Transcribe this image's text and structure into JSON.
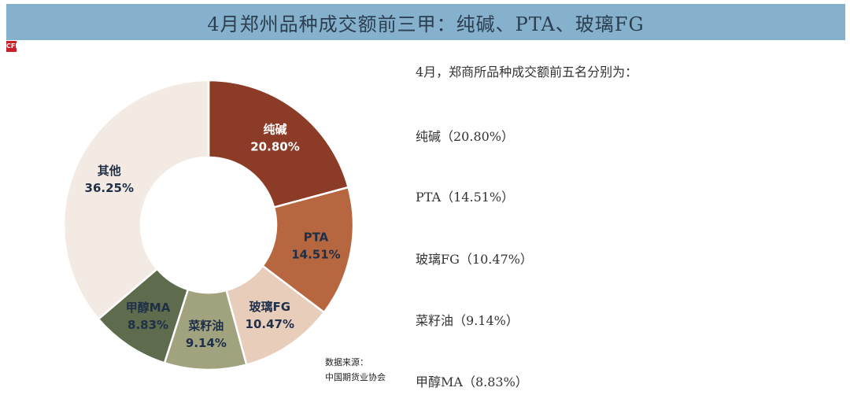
{
  "title": "4月郑州品种成交额前三甲：纯碱、PTA、玻璃FG",
  "logo_text": "CFI",
  "intro": "4月，郑商所品种成交额前五名分别为：",
  "list": [
    "纯碱（20.80%）",
    "PTA（14.51%）",
    "玻璃FG（10.47%）",
    "菜籽油（9.14%）",
    "甲醇MA（8.83%）"
  ],
  "source_label": "数据来源：",
  "source_name": "中国期货业协会",
  "chart_data": {
    "type": "pie",
    "variant": "donut",
    "title": "4月郑州品种成交额前三甲：纯碱、PTA、玻璃FG",
    "categories": [
      "纯碱",
      "PTA",
      "玻璃FG",
      "菜籽油",
      "甲醇MA",
      "其他"
    ],
    "values": [
      20.8,
      14.51,
      10.47,
      9.14,
      8.83,
      36.25
    ],
    "value_labels": [
      "20.80%",
      "14.51%",
      "10.47%",
      "9.14%",
      "8.83%",
      "36.25%"
    ],
    "colors": [
      "#8c3b26",
      "#b7673f",
      "#e8cdbb",
      "#a1a37f",
      "#5e6b4c",
      "#f3ebe3"
    ],
    "label_colors": [
      "#ffffff",
      "#1f2f48",
      "#1f2f48",
      "#1f2f48",
      "#1f2f48",
      "#1f2f48"
    ],
    "start_angle_deg": 0,
    "direction": "clockwise"
  }
}
